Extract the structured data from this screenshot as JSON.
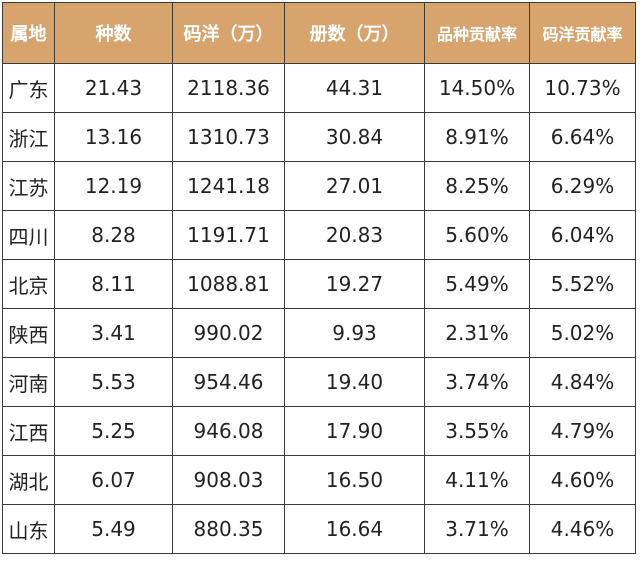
{
  "table": {
    "headers": [
      "属地",
      "种数",
      "码洋（万）",
      "册数（万）",
      "品种贡献率",
      "码洋贡献率"
    ],
    "rows": [
      [
        "广东",
        "21.43",
        "2118.36",
        "44.31",
        "14.50%",
        "10.73%"
      ],
      [
        "浙江",
        "13.16",
        "1310.73",
        "30.84",
        "8.91%",
        "6.64%"
      ],
      [
        "江苏",
        "12.19",
        "1241.18",
        "27.01",
        "8.25%",
        "6.29%"
      ],
      [
        "四川",
        "8.28",
        "1191.71",
        "20.83",
        "5.60%",
        "6.04%"
      ],
      [
        "北京",
        "8.11",
        "1088.81",
        "19.27",
        "5.49%",
        "5.52%"
      ],
      [
        "陕西",
        "3.41",
        "990.02",
        "9.93",
        "2.31%",
        "5.02%"
      ],
      [
        "河南",
        "5.53",
        "954.46",
        "19.40",
        "3.74%",
        "4.84%"
      ],
      [
        "江西",
        "5.25",
        "946.08",
        "17.90",
        "3.55%",
        "4.79%"
      ],
      [
        "湖北",
        "6.07",
        "908.03",
        "16.50",
        "4.11%",
        "4.60%"
      ],
      [
        "山东",
        "5.49",
        "880.35",
        "16.64",
        "3.71%",
        "4.46%"
      ]
    ]
  },
  "colors": {
    "header_bg": "#d6a46c",
    "header_text": "#ffffff",
    "border": "#3a3a3a",
    "cell_text": "#222222"
  }
}
